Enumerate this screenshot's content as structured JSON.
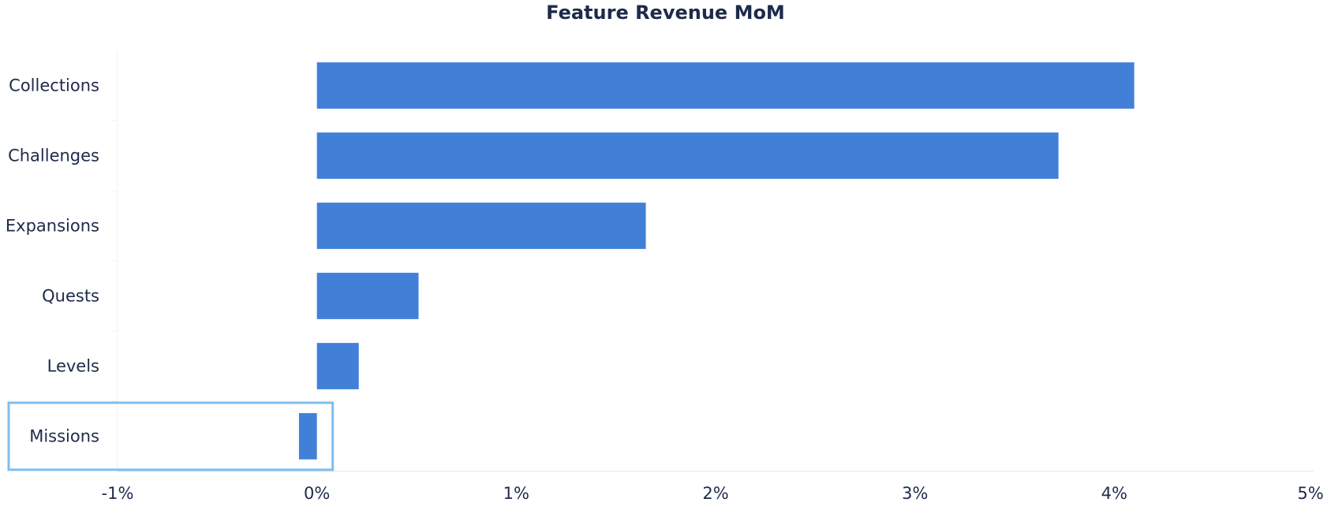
{
  "chart_data": {
    "type": "bar",
    "orientation": "horizontal",
    "title": "Feature Revenue MoM",
    "xlabel": "",
    "ylabel": "",
    "categories": [
      "Collections",
      "Challenges",
      "Expansions",
      "Quests",
      "Levels",
      "Missions"
    ],
    "values": [
      4.1,
      3.72,
      1.65,
      0.51,
      0.21,
      -0.09
    ],
    "unit": "%",
    "xlim": [
      -1,
      5
    ],
    "xticks": [
      "-1%",
      "0%",
      "1%",
      "2%",
      "3%",
      "4%",
      "5%"
    ],
    "grid": false,
    "highlighted_category": "Missions",
    "colors": {
      "bar": "#4280d8",
      "highlight": "#7fbef0",
      "text": "#1e2a4a",
      "axis": "#e3e6ec"
    }
  }
}
